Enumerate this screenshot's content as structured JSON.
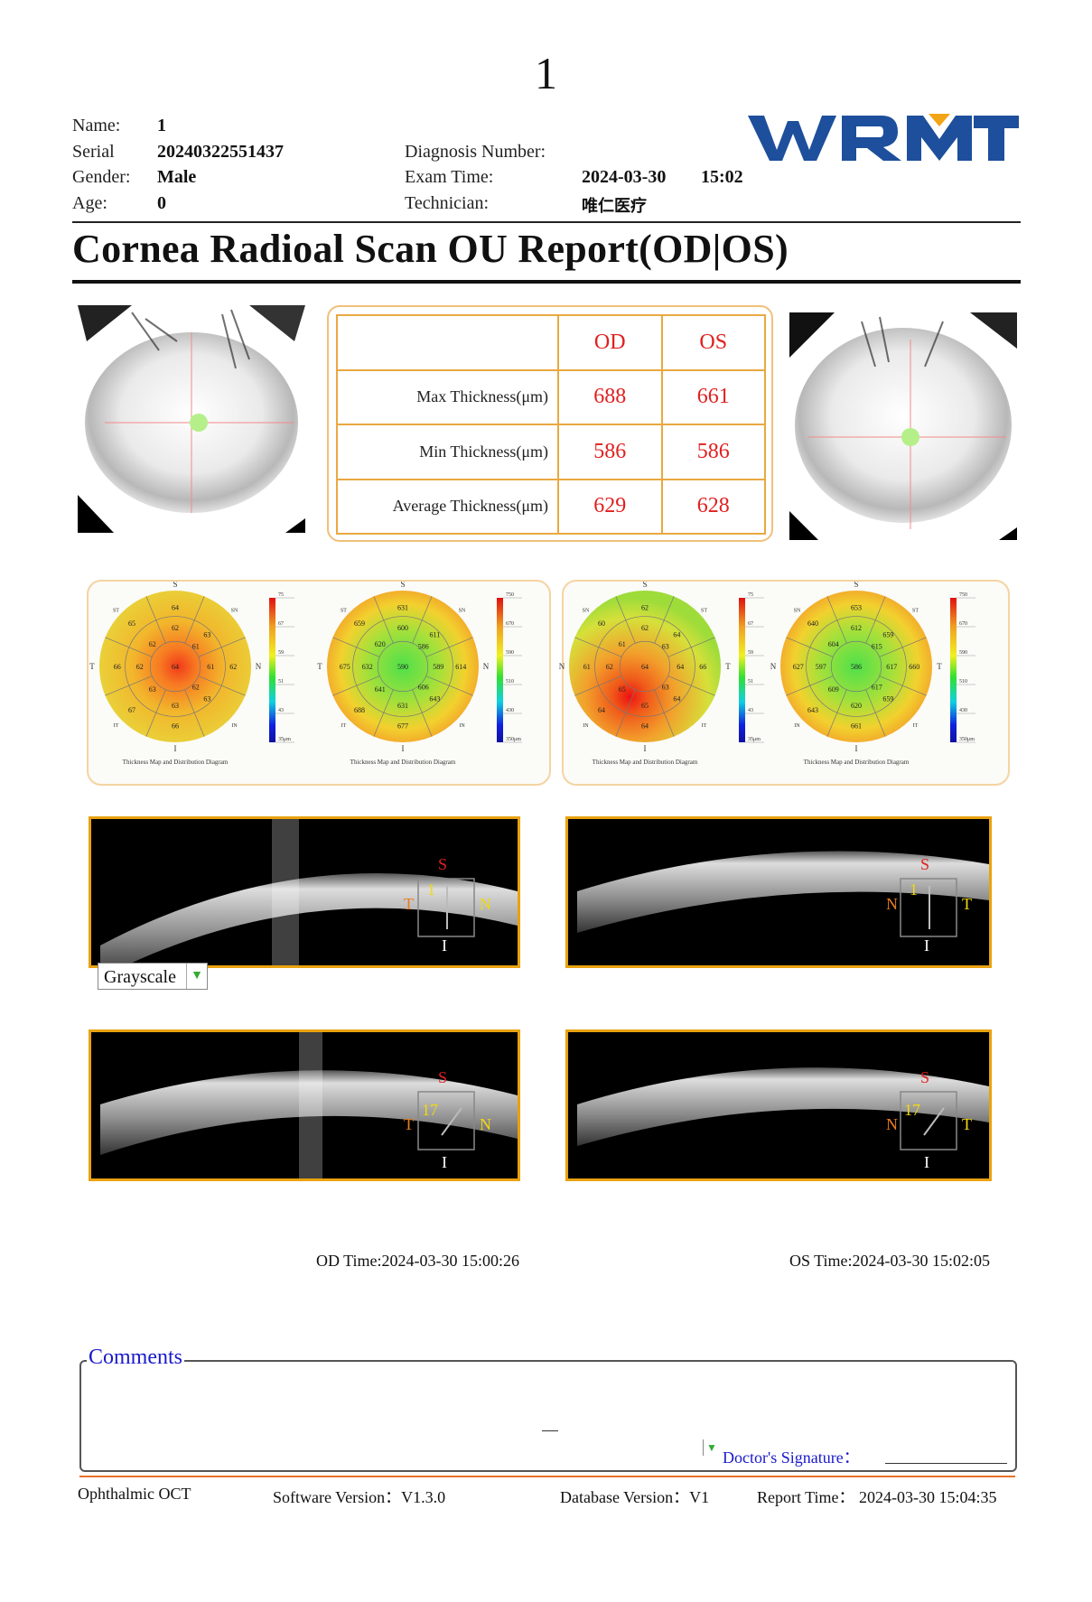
{
  "page_number": "1",
  "patient": {
    "name_label": "Name:",
    "name": "1",
    "serial_label": "Serial",
    "serial": "20240322551437",
    "gender_label": "Gender:",
    "gender": "Male",
    "age_label": "Age:",
    "age": "0"
  },
  "exam": {
    "diagnosis_label": "Diagnosis Number:",
    "diagnosis": "",
    "time_label": "Exam Time:",
    "date": "2024-03-30",
    "time": "15:02",
    "technician_label": "Technician:",
    "technician": "唯仁医疗"
  },
  "logo": {
    "text": "WRMT",
    "color": "#1d4f9c",
    "accent": "#f2a516"
  },
  "title": "Cornea Radioal Scan OU Report(OD|OS)",
  "thickness_table": {
    "col_od": "OD",
    "col_os": "OS",
    "rows": [
      {
        "label": "Max Thickness(μm)",
        "od": "688",
        "os": "661"
      },
      {
        "label": "Min Thickness(μm)",
        "od": "586",
        "os": "586"
      },
      {
        "label": "Average Thickness(μm)",
        "od": "629",
        "os": "628"
      }
    ]
  },
  "maps": {
    "caption": "Thickness Map and Distribution Diagram",
    "od_epi": {
      "s": "S",
      "i": "I",
      "left": "T",
      "right": "N",
      "q_tl": "ST",
      "q_tr": "SN",
      "q_bl": "IT",
      "q_br": "IN",
      "values": [
        "64",
        "65",
        "62",
        "63",
        "62",
        "61",
        "66",
        "62",
        "64",
        "61",
        "62",
        "63",
        "62",
        "67",
        "63",
        "63",
        "66"
      ],
      "scale": [
        "75",
        "67",
        "59",
        "51",
        "43",
        "35μm"
      ]
    },
    "od_total": {
      "s": "S",
      "i": "I",
      "left": "T",
      "right": "N",
      "q_tl": "ST",
      "q_tr": "SN",
      "q_bl": "IT",
      "q_br": "IN",
      "values": [
        "631",
        "659",
        "600",
        "611",
        "620",
        "586",
        "675",
        "632",
        "590",
        "589",
        "614",
        "641",
        "606",
        "688",
        "631",
        "643",
        "677"
      ],
      "scale": [
        "750",
        "670",
        "590",
        "510",
        "430",
        "350μm"
      ]
    },
    "os_epi": {
      "s": "S",
      "i": "I",
      "left": "N",
      "right": "T",
      "q_tl": "SN",
      "q_tr": "ST",
      "q_bl": "IN",
      "q_br": "IT",
      "values": [
        "62",
        "60",
        "62",
        "64",
        "61",
        "63",
        "61",
        "62",
        "64",
        "64",
        "66",
        "65",
        "63",
        "64",
        "65",
        "64",
        "64"
      ],
      "scale": [
        "75",
        "67",
        "59",
        "51",
        "43",
        "35μm"
      ]
    },
    "os_total": {
      "s": "S",
      "i": "I",
      "left": "N",
      "right": "T",
      "q_tl": "SN",
      "q_tr": "ST",
      "q_bl": "IN",
      "q_br": "IT",
      "values": [
        "653",
        "640",
        "612",
        "659",
        "604",
        "615",
        "627",
        "597",
        "586",
        "617",
        "660",
        "609",
        "617",
        "643",
        "620",
        "659",
        "661"
      ],
      "scale": [
        "750",
        "670",
        "590",
        "510",
        "430",
        "350μm"
      ]
    }
  },
  "oct_scans": {
    "od1": {
      "s": "S",
      "i": "I",
      "l": "T",
      "r": "N",
      "n": "1"
    },
    "os1": {
      "s": "S",
      "i": "I",
      "l": "N",
      "r": "T",
      "n": "1"
    },
    "od2": {
      "s": "S",
      "i": "I",
      "l": "T",
      "r": "N",
      "n": "17"
    },
    "os2": {
      "s": "S",
      "i": "I",
      "l": "N",
      "r": "T",
      "n": "17"
    },
    "display_mode": "Grayscale"
  },
  "times": {
    "od": "OD Time:2024-03-30 15:00:26",
    "os": "OS Time:2024-03-30 15:02:05"
  },
  "comments": {
    "title": "Comments",
    "signature_label": "Doctor's Signature：",
    "text": ""
  },
  "footer": {
    "device": "Ophthalmic OCT",
    "software": "Software Version：V1.3.0",
    "database": "Database Version：V1",
    "report_time": "Report Time： 2024-03-30 15:04:35"
  }
}
